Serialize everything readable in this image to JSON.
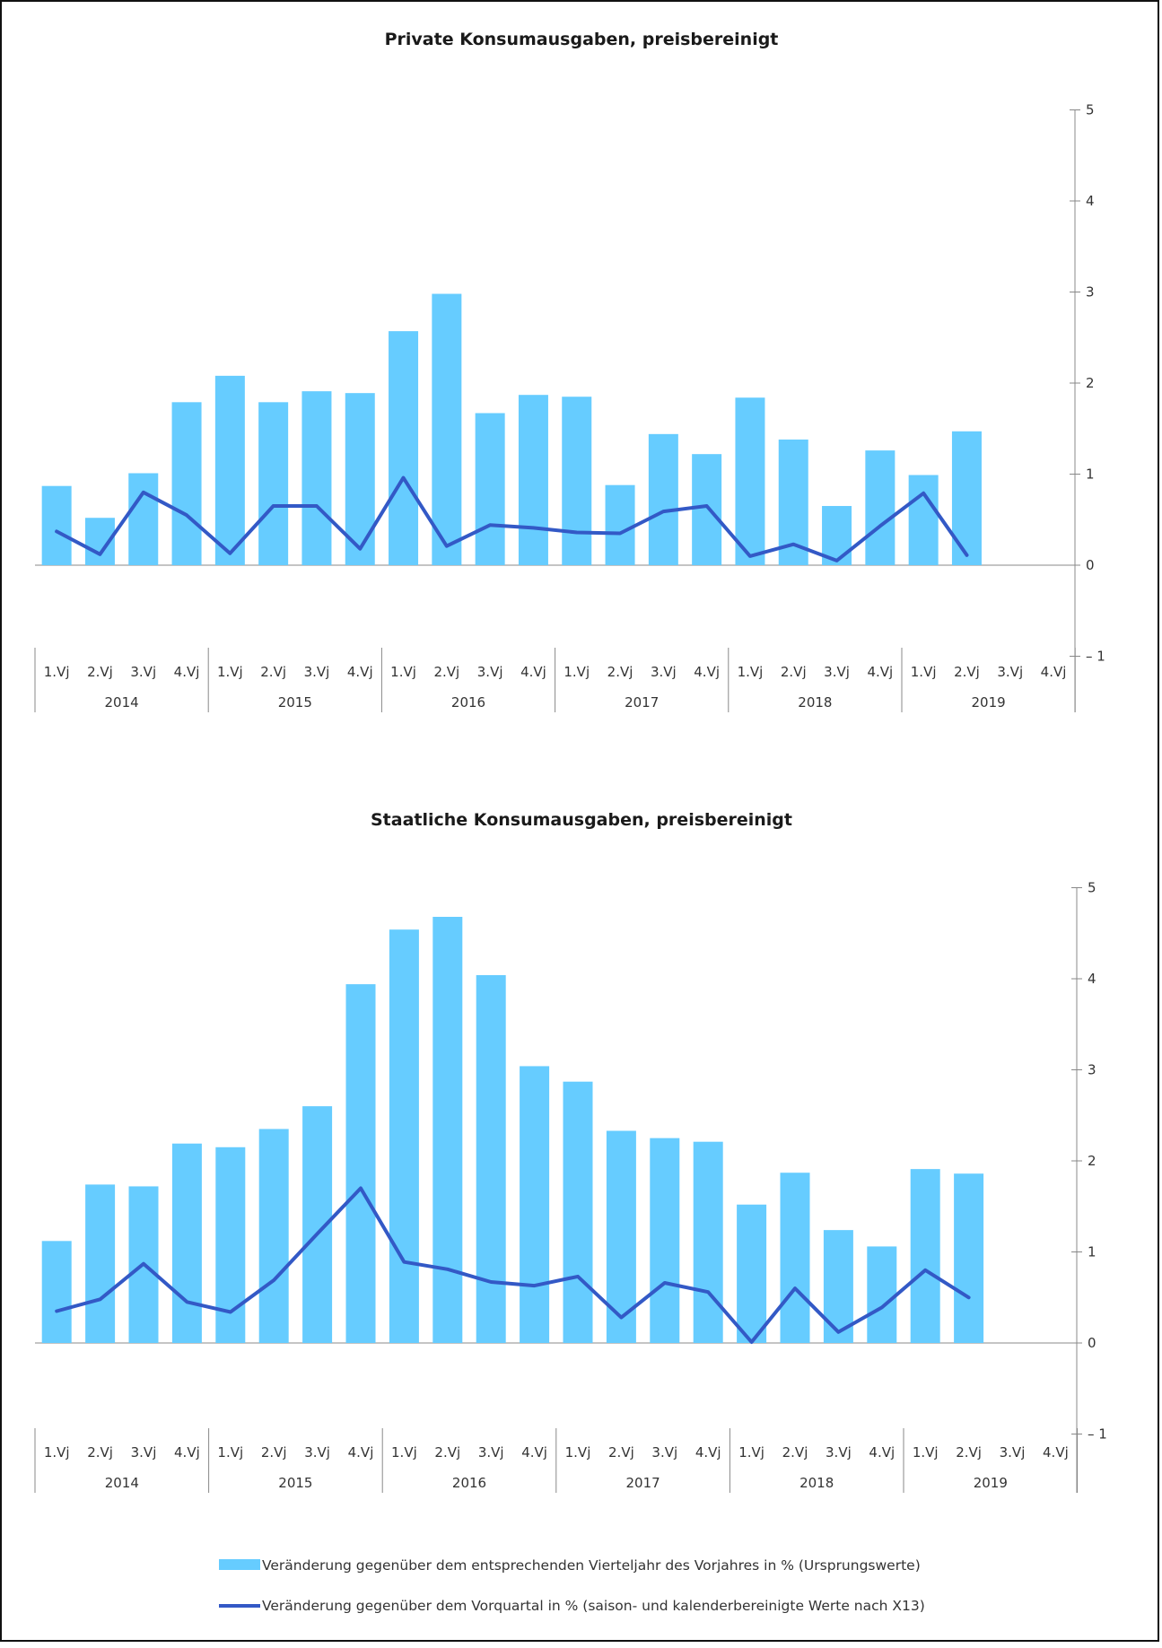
{
  "colors": {
    "bar": "#66CCFF",
    "line": "#3359C6",
    "axis": "#888888",
    "frame": "#111111"
  },
  "quarter_labels": [
    "1.Vj",
    "2.Vj",
    "3.Vj",
    "4.Vj"
  ],
  "years": [
    "2014",
    "2015",
    "2016",
    "2017",
    "2018",
    "2019"
  ],
  "legend": {
    "bar_label": "Veränderung gegenüber dem entsprechenden Vierteljahr des Vorjahres in % (Ursprungswerte)",
    "line_label": "Veränderung gegenüber dem Vorquartal in % (saison- und kalenderbereinigte Werte nach X13)"
  },
  "chart_data": [
    {
      "type": "bar",
      "title": "Private Konsumausgaben, preisbereinigt",
      "yticks": [
        "5",
        "4",
        "3",
        "2",
        "1",
        "0",
        "– 1"
      ],
      "ylim": [
        -1,
        5
      ],
      "categories": [
        "2014 1.Vj",
        "2014 2.Vj",
        "2014 3.Vj",
        "2014 4.Vj",
        "2015 1.Vj",
        "2015 2.Vj",
        "2015 3.Vj",
        "2015 4.Vj",
        "2016 1.Vj",
        "2016 2.Vj",
        "2016 3.Vj",
        "2016 4.Vj",
        "2017 1.Vj",
        "2017 2.Vj",
        "2017 3.Vj",
        "2017 4.Vj",
        "2018 1.Vj",
        "2018 2.Vj",
        "2018 3.Vj",
        "2018 4.Vj",
        "2019 1.Vj",
        "2019 2.Vj",
        "2019 3.Vj",
        "2019 4.Vj"
      ],
      "series": [
        {
          "kind": "bar",
          "values": [
            0.87,
            0.52,
            1.01,
            1.79,
            2.08,
            1.79,
            1.91,
            1.89,
            2.57,
            2.98,
            1.67,
            1.87,
            1.85,
            0.88,
            1.44,
            1.22,
            1.84,
            1.38,
            0.65,
            1.26,
            0.99,
            1.47,
            null,
            null
          ]
        },
        {
          "kind": "line",
          "values": [
            0.37,
            0.12,
            0.8,
            0.55,
            0.13,
            0.65,
            0.65,
            0.18,
            0.96,
            0.21,
            0.44,
            0.41,
            0.36,
            0.35,
            0.59,
            0.65,
            0.1,
            0.23,
            0.05,
            0.43,
            0.79,
            0.11,
            null,
            null
          ]
        }
      ]
    },
    {
      "type": "bar",
      "title": "Staatliche Konsumausgaben, preisbereinigt",
      "yticks": [
        "5",
        "4",
        "3",
        "2",
        "1",
        "0",
        "– 1"
      ],
      "ylim": [
        -1,
        5
      ],
      "categories": [
        "2014 1.Vj",
        "2014 2.Vj",
        "2014 3.Vj",
        "2014 4.Vj",
        "2015 1.Vj",
        "2015 2.Vj",
        "2015 3.Vj",
        "2015 4.Vj",
        "2016 1.Vj",
        "2016 2.Vj",
        "2016 3.Vj",
        "2016 4.Vj",
        "2017 1.Vj",
        "2017 2.Vj",
        "2017 3.Vj",
        "2017 4.Vj",
        "2018 1.Vj",
        "2018 2.Vj",
        "2018 3.Vj",
        "2018 4.Vj",
        "2019 1.Vj",
        "2019 2.Vj",
        "2019 3.Vj",
        "2019 4.Vj"
      ],
      "series": [
        {
          "kind": "bar",
          "values": [
            1.12,
            1.74,
            1.72,
            2.19,
            2.15,
            2.35,
            2.6,
            3.94,
            4.54,
            4.68,
            4.04,
            3.04,
            2.87,
            2.33,
            2.25,
            2.21,
            1.52,
            1.87,
            1.24,
            1.06,
            1.91,
            1.86,
            null,
            null
          ]
        },
        {
          "kind": "line",
          "values": [
            0.35,
            0.48,
            0.87,
            0.45,
            0.34,
            0.69,
            1.2,
            1.7,
            0.89,
            0.81,
            0.67,
            0.63,
            0.73,
            0.28,
            0.66,
            0.56,
            0.01,
            0.6,
            0.12,
            0.39,
            0.8,
            0.5,
            null,
            null
          ]
        }
      ]
    }
  ]
}
